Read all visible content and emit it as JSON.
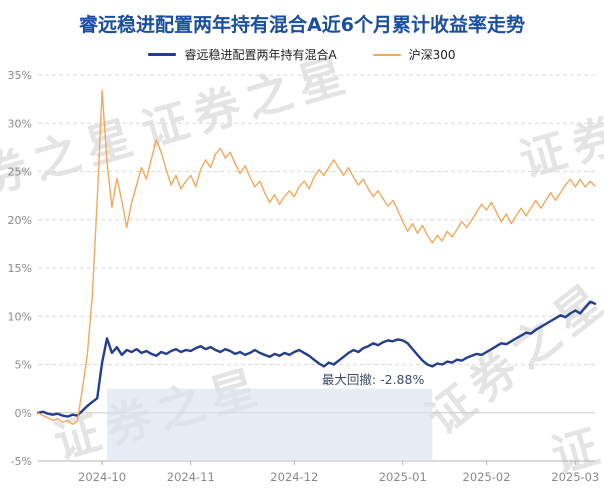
{
  "title": "睿远稳进配置两年持有混合A近6个月累计收益率走势",
  "watermark": {
    "text": "证券之星"
  },
  "colors": {
    "title": "#1a4fa0",
    "grid": "#dcdcdc",
    "axis_text": "#8a8a8a",
    "annotation": "#3f4b66",
    "drawdown_fill": "#dce4ef"
  },
  "chart_data": {
    "type": "line",
    "title": "睿远稳进配置两年持有混合A近6个月累计收益率走势",
    "xlabel": "",
    "ylabel": "",
    "x_unit": "trading-day",
    "grid": "horizontal-dashed",
    "legend_position": "top-center",
    "ylim": [
      -5,
      35
    ],
    "y_ticks": [
      {
        "value": -5,
        "label": "-5%"
      },
      {
        "value": 0,
        "label": "0%"
      },
      {
        "value": 5,
        "label": "5%"
      },
      {
        "value": 10,
        "label": "10%"
      },
      {
        "value": 15,
        "label": "15%"
      },
      {
        "value": 20,
        "label": "20%"
      },
      {
        "value": 25,
        "label": "25%"
      },
      {
        "value": 30,
        "label": "30%"
      },
      {
        "value": 35,
        "label": "35%"
      }
    ],
    "x_ticks": [
      {
        "index": 13,
        "label": "2024-10"
      },
      {
        "index": 31,
        "label": "2024-11"
      },
      {
        "index": 52,
        "label": "2024-12"
      },
      {
        "index": 74,
        "label": "2025-01"
      },
      {
        "index": 91,
        "label": "2025-02"
      },
      {
        "index": 109,
        "label": "2025-03"
      }
    ],
    "series": [
      {
        "name": "睿远稳进配置两年持有混合A",
        "color": "#233e8e",
        "values": [
          0.0,
          0.1,
          -0.1,
          -0.2,
          -0.1,
          -0.3,
          -0.4,
          -0.2,
          -0.3,
          0.2,
          0.7,
          1.1,
          1.5,
          5.2,
          7.7,
          6.2,
          6.8,
          6.0,
          6.5,
          6.3,
          6.6,
          6.2,
          6.4,
          6.1,
          5.9,
          6.3,
          6.1,
          6.4,
          6.6,
          6.3,
          6.5,
          6.4,
          6.7,
          6.9,
          6.6,
          6.8,
          6.5,
          6.3,
          6.6,
          6.4,
          6.1,
          6.3,
          6.0,
          6.2,
          6.5,
          6.2,
          6.0,
          5.8,
          6.1,
          5.9,
          6.2,
          6.0,
          6.3,
          6.5,
          6.2,
          5.9,
          5.5,
          5.1,
          4.8,
          5.2,
          5.0,
          5.4,
          5.8,
          6.2,
          6.5,
          6.3,
          6.7,
          6.9,
          7.2,
          7.0,
          7.3,
          7.5,
          7.4,
          7.6,
          7.5,
          7.2,
          6.6,
          6.0,
          5.4,
          5.0,
          4.8,
          5.1,
          5.0,
          5.3,
          5.2,
          5.5,
          5.4,
          5.7,
          5.9,
          6.1,
          6.0,
          6.3,
          6.6,
          6.9,
          7.2,
          7.1,
          7.4,
          7.7,
          8.0,
          8.3,
          8.2,
          8.6,
          8.9,
          9.2,
          9.5,
          9.8,
          10.1,
          9.9,
          10.3,
          10.6,
          10.3,
          10.9,
          11.5,
          11.3
        ]
      },
      {
        "name": "沪深300",
        "color": "#f3a85c",
        "values": [
          0.0,
          -0.3,
          -0.5,
          -0.8,
          -0.6,
          -1.0,
          -0.8,
          -1.2,
          -0.9,
          2.5,
          6.0,
          12.0,
          22.0,
          33.4,
          26.0,
          21.3,
          24.3,
          22.0,
          19.2,
          21.8,
          23.6,
          25.4,
          24.2,
          26.3,
          28.3,
          27.0,
          25.2,
          23.6,
          24.6,
          23.2,
          24.0,
          24.6,
          23.4,
          25.2,
          26.2,
          25.4,
          26.8,
          27.4,
          26.4,
          27.0,
          25.8,
          24.8,
          25.6,
          24.4,
          23.4,
          24.0,
          22.8,
          21.8,
          22.6,
          21.6,
          22.4,
          23.0,
          22.4,
          23.4,
          24.0,
          23.2,
          24.4,
          25.2,
          24.6,
          25.4,
          26.2,
          25.4,
          24.6,
          25.4,
          24.4,
          23.6,
          24.2,
          23.2,
          22.4,
          23.0,
          22.2,
          21.4,
          22.0,
          21.0,
          19.8,
          18.8,
          19.6,
          18.6,
          19.4,
          18.4,
          17.6,
          18.4,
          17.8,
          18.8,
          18.2,
          19.0,
          19.8,
          19.2,
          20.0,
          20.8,
          21.6,
          21.0,
          21.8,
          20.8,
          19.8,
          20.6,
          19.6,
          20.4,
          21.2,
          20.4,
          21.2,
          22.0,
          21.2,
          22.0,
          22.8,
          22.0,
          22.8,
          23.6,
          24.2,
          23.4,
          24.2,
          23.4,
          24.0,
          23.5
        ]
      }
    ],
    "annotation": {
      "text": "最大回撤: -2.88%",
      "value": "-2.88%"
    },
    "drawdown_region": {
      "start_index": 14,
      "end_index": 80,
      "top_value": 2.5
    }
  }
}
